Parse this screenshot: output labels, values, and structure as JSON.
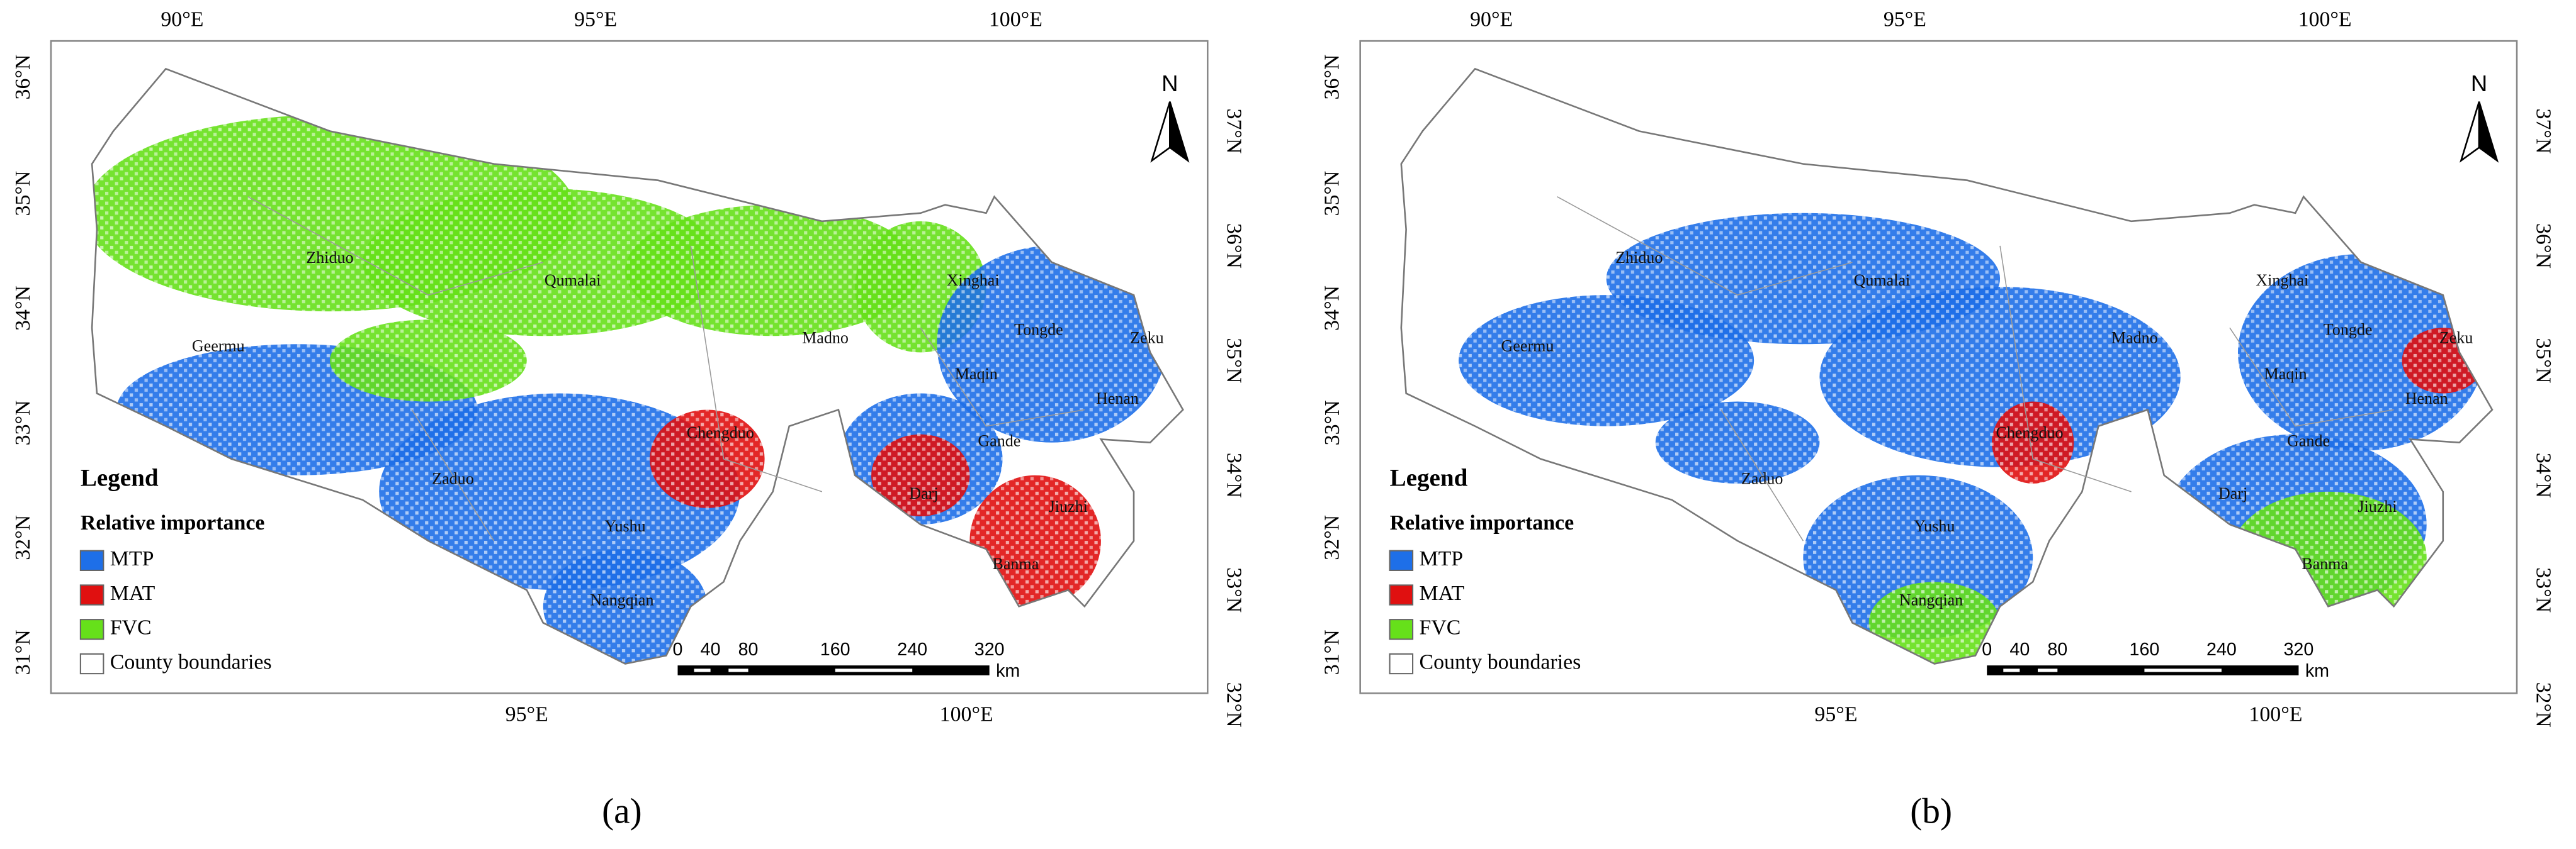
{
  "panels": [
    {
      "caption": "(a)",
      "north": "N",
      "top_axis": [
        "90°E",
        "95°E",
        "100°E"
      ],
      "bottom_axis": [
        "95°E",
        "100°E"
      ],
      "left_axis": [
        "36°N",
        "35°N",
        "34°N",
        "33°N",
        "32°N",
        "31°N"
      ],
      "right_axis": [
        "37°N",
        "36°N",
        "35°N",
        "34°N",
        "33°N",
        "32°N"
      ],
      "places": [
        "Zhiduo",
        "Qumalai",
        "Xinghai",
        "Geermu",
        "Madno",
        "Tongde",
        "Zeku",
        "Maqin",
        "Henan",
        "Chengduo",
        "Gande",
        "Zaduo",
        "Darj",
        "Jiuzhi",
        "Yushu",
        "Banma",
        "Nangqian"
      ],
      "legend": {
        "title": "Legend",
        "subtitle": "Relative importance",
        "items": [
          "MTP",
          "MAT",
          "FVC",
          "County boundaries"
        ]
      },
      "scale": {
        "ticks": [
          "0",
          "40",
          "80",
          "160",
          "240",
          "320"
        ],
        "unit": "km"
      }
    },
    {
      "caption": "(b)",
      "north": "N",
      "top_axis": [
        "90°E",
        "95°E",
        "100°E"
      ],
      "bottom_axis": [
        "95°E",
        "100°E"
      ],
      "left_axis": [
        "36°N",
        "35°N",
        "34°N",
        "33°N",
        "32°N",
        "31°N"
      ],
      "right_axis": [
        "37°N",
        "36°N",
        "35°N",
        "34°N",
        "33°N",
        "32°N"
      ],
      "places": [
        "Zhiduo",
        "Qumalai",
        "Xinghai",
        "Geermu",
        "Madno",
        "Tongde",
        "Zeku",
        "Maqin",
        "Henan",
        "Chengduo",
        "Gande",
        "Zaduo",
        "Darj",
        "Jiuzhi",
        "Yushu",
        "Banma",
        "Nangqian"
      ],
      "legend": {
        "title": "Legend",
        "subtitle": "Relative importance",
        "items": [
          "MTP",
          "MAT",
          "FVC",
          "County boundaries"
        ]
      },
      "scale": {
        "ticks": [
          "0",
          "40",
          "80",
          "160",
          "240",
          "320"
        ],
        "unit": "km"
      }
    }
  ]
}
